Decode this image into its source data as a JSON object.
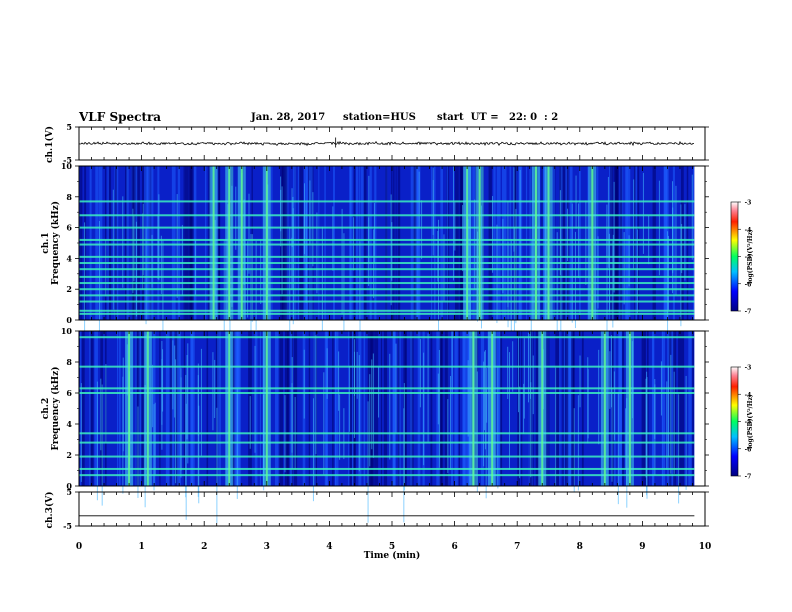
{
  "header": {
    "title": "VLF Spectra",
    "date": "Jan. 28, 2017",
    "station": "station=HUS",
    "start": "start  UT =   22: 0  : 2"
  },
  "chart_data": [
    {
      "type": "line",
      "name": "ch.1 waveform",
      "ylabel": "ch.1(V)",
      "ylim": [
        -5,
        5
      ],
      "yticks": [
        "5",
        "-5"
      ],
      "xlim": [
        0,
        10
      ],
      "data_extent_min": 9.83,
      "level": 0,
      "style": "noisy"
    },
    {
      "type": "heatmap",
      "name": "ch.1 spectrogram",
      "ylabel_top": "ch.1",
      "ylabel": "Frequency  (kHz)",
      "ylim": [
        0,
        10
      ],
      "yticks": [
        "0",
        "2",
        "4",
        "6",
        "8",
        "10"
      ],
      "xlim": [
        0,
        10
      ],
      "data_extent_min": 9.83,
      "colorbar": {
        "label": "log(PSD)(V²/Hz)",
        "range": [
          -7,
          -3
        ],
        "ticks": [
          "-3",
          "-4",
          "-5",
          "-6",
          "-7"
        ]
      },
      "bands_khz": [
        0.4,
        0.6,
        1.2,
        1.6,
        2.0,
        2.4,
        2.8,
        3.3,
        3.7,
        4.1,
        4.9,
        5.2,
        6.0,
        6.8,
        7.7
      ],
      "bursts_min": [
        2.15,
        2.4,
        2.6,
        3.0,
        6.2,
        6.4,
        7.3,
        7.5,
        8.2
      ]
    },
    {
      "type": "heatmap",
      "name": "ch.2 spectrogram",
      "ylabel_top": "ch.2",
      "ylabel": "Frequency  (kHz)",
      "ylim": [
        0,
        10
      ],
      "yticks": [
        "0",
        "2",
        "4",
        "6",
        "8",
        "10"
      ],
      "xlim": [
        0,
        10
      ],
      "data_extent_min": 9.83,
      "colorbar": {
        "label": "log(PSD)(V²/Hz)",
        "range": [
          -7,
          -3
        ],
        "ticks": [
          "-3",
          "-4",
          "-5",
          "-6",
          "-7"
        ]
      },
      "bands_khz": [
        0.7,
        1.1,
        1.9,
        2.8,
        3.4,
        6.0,
        6.3,
        7.7,
        9.6
      ],
      "bursts_min": [
        0.8,
        1.1,
        2.4,
        3.0,
        6.3,
        6.6,
        7.4,
        8.4,
        8.8
      ]
    },
    {
      "type": "line",
      "name": "ch.3 waveform",
      "ylabel": "ch.3(V)",
      "ylim": [
        -5,
        5
      ],
      "yticks": [
        "5",
        "-5"
      ],
      "xlim": [
        0,
        10
      ],
      "data_extent_min": 9.83,
      "level": -2,
      "style": "flat"
    }
  ],
  "xaxis": {
    "label": "Time  (min)",
    "ticks": [
      "0",
      "1",
      "2",
      "3",
      "4",
      "5",
      "6",
      "7",
      "8",
      "9",
      "10"
    ]
  }
}
